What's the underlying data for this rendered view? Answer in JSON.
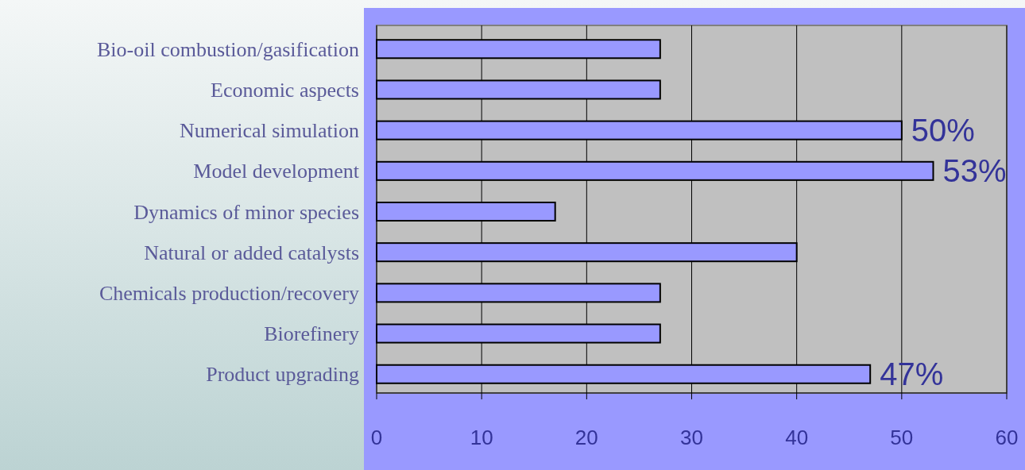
{
  "chart_data": {
    "type": "bar",
    "orientation": "horizontal",
    "categories": [
      "Bio-oil combustion/gasification",
      "Economic aspects",
      "Numerical simulation",
      "Model development",
      "Dynamics of minor species",
      "Natural or added catalysts",
      "Chemicals production/recovery",
      "Biorefinery",
      "Product upgrading"
    ],
    "values": [
      27,
      27,
      50,
      53,
      17,
      40,
      27,
      27,
      47
    ],
    "value_labels": [
      null,
      null,
      "50%",
      "53%",
      null,
      null,
      null,
      null,
      "47%"
    ],
    "color": "#9999ff",
    "xlim": [
      0,
      60
    ],
    "xticks": [
      0,
      10,
      20,
      30,
      40,
      50,
      60
    ],
    "grid": "x"
  }
}
